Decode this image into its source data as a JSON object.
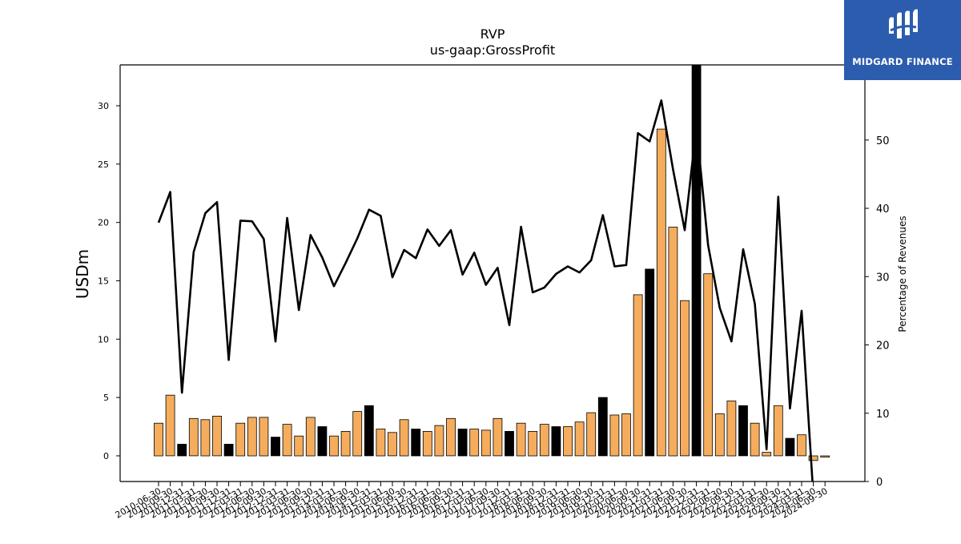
{
  "brand": {
    "name": "MIDGARD FINANCE",
    "color": "#2c5cad"
  },
  "chart_data": {
    "type": "bar",
    "title": "RVP",
    "subtitle": "us-gaap:GrossProfit",
    "ylabel": "USDm",
    "ylabel_right": "Percentage of Revenues",
    "ylim": [
      -2.2,
      33.5
    ],
    "ylim_right": [
      0,
      61
    ],
    "yticks": [
      0,
      5,
      10,
      15,
      20,
      25,
      30
    ],
    "yticks_right": [
      0,
      10,
      20,
      30,
      40,
      50
    ],
    "grid": false,
    "legend": "none",
    "colors": {
      "q1_q3": "#f5ad5d",
      "q4": "#000000",
      "line": "#000000"
    },
    "categories": [
      "2010-06-30",
      "2010-09-30",
      "2010-12-31",
      "2011-03-31",
      "2011-06-30",
      "2011-09-30",
      "2011-12-31",
      "2012-03-31",
      "2012-06-30",
      "2012-09-30",
      "2012-12-31",
      "2013-03-31",
      "2013-06-30",
      "2013-09-30",
      "2013-12-31",
      "2014-03-31",
      "2014-06-30",
      "2014-09-30",
      "2014-12-31",
      "2015-03-31",
      "2015-06-30",
      "2015-09-30",
      "2015-12-31",
      "2016-03-31",
      "2016-06-30",
      "2016-09-30",
      "2016-12-31",
      "2017-03-31",
      "2017-06-30",
      "2017-09-30",
      "2017-12-31",
      "2018-03-31",
      "2018-06-30",
      "2018-09-30",
      "2018-12-31",
      "2019-03-31",
      "2019-06-30",
      "2019-09-30",
      "2019-12-31",
      "2020-03-31",
      "2020-06-30",
      "2020-09-30",
      "2020-12-31",
      "2021-03-31",
      "2021-06-30",
      "2021-09-30",
      "2021-12-31",
      "2022-03-31",
      "2022-06-30",
      "2022-09-30",
      "2022-12-31",
      "2023-03-31",
      "2023-06-30",
      "2023-09-30",
      "2023-12-31",
      "2024-03-31",
      "2024-06-30",
      "2024-09-30"
    ],
    "series": [
      {
        "kind": "bar",
        "axis": "left",
        "values": [
          2.8,
          5.2,
          1.0,
          3.2,
          3.1,
          3.4,
          1.0,
          2.8,
          3.3,
          3.3,
          1.6,
          2.7,
          1.7,
          3.3,
          2.5,
          1.7,
          2.1,
          3.8,
          4.3,
          2.3,
          2.0,
          3.1,
          2.3,
          2.1,
          2.6,
          3.2,
          2.3,
          2.3,
          2.2,
          3.2,
          2.1,
          2.8,
          2.1,
          2.7,
          2.5,
          2.5,
          2.9,
          3.7,
          5.0,
          3.5,
          3.6,
          13.8,
          16.0,
          28.0,
          19.6,
          13.3,
          33.5,
          15.6,
          3.6,
          4.7,
          4.3,
          2.8,
          0.3,
          4.3,
          1.5,
          1.8,
          -0.4,
          -0.1
        ]
      },
      {
        "kind": "line",
        "axis": "right",
        "values": [
          37.9,
          42.4,
          13.0,
          33.6,
          39.3,
          40.9,
          17.8,
          38.2,
          38.1,
          35.5,
          20.5,
          38.6,
          25.1,
          36.1,
          32.8,
          28.6,
          32.0,
          35.6,
          39.8,
          38.9,
          29.9,
          33.9,
          32.7,
          36.9,
          34.5,
          36.8,
          30.3,
          33.5,
          28.8,
          31.3,
          22.9,
          37.3,
          27.7,
          28.4,
          30.4,
          31.5,
          30.6,
          32.4,
          39.0,
          31.5,
          31.7,
          51.0,
          49.8,
          55.8,
          45.7,
          36.8,
          52.0,
          34.6,
          25.4,
          20.5,
          34.0,
          26.0,
          4.7,
          41.7,
          10.7,
          25.0,
          -2.0,
          null
        ]
      }
    ]
  }
}
